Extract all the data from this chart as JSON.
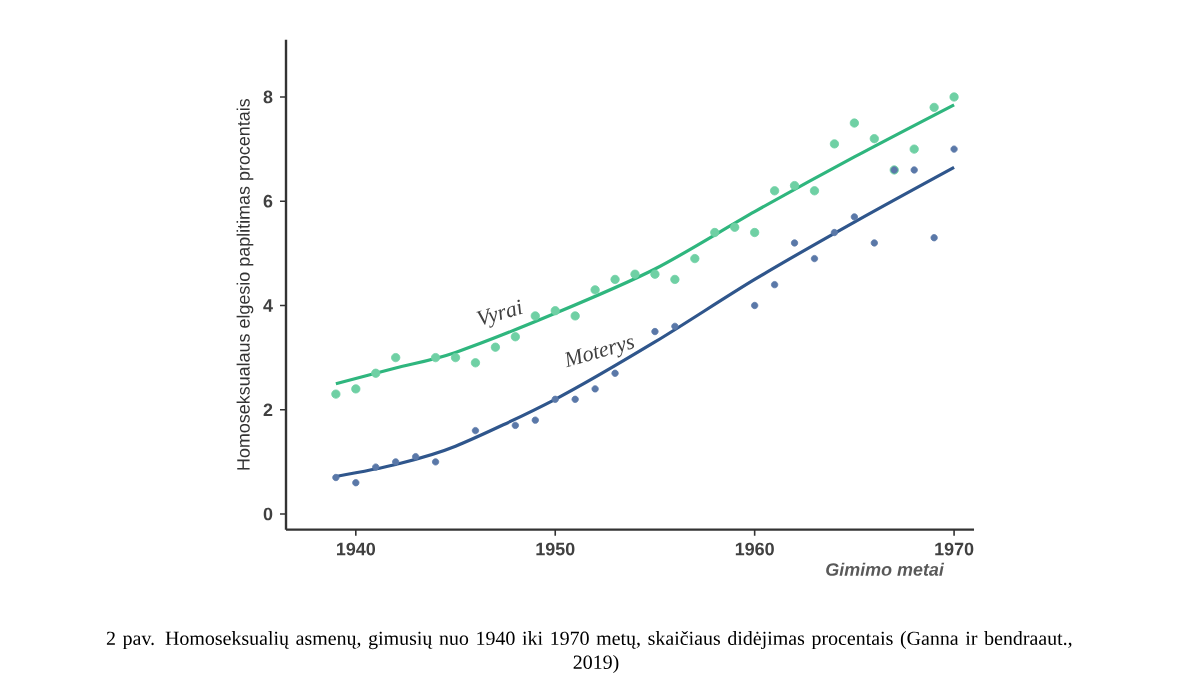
{
  "chart_data": {
    "type": "scatter",
    "xlabel": "Gimimo metai",
    "ylabel": "Homoseksualaus elgesio paplitimas procentais",
    "xlim": [
      1936.5,
      1971
    ],
    "ylim": [
      -0.3,
      9.1
    ],
    "xticks": [
      1940,
      1950,
      1960,
      1970
    ],
    "yticks": [
      0,
      2,
      4,
      6,
      8
    ],
    "grid": false,
    "annotations": [
      "2 pav. Homoseksualių asmenų, gimusių nuo 1940 iki 1970 metų, skaičiaus didėjimas procentais (Ganna ir bendraaut., 2019)"
    ],
    "series": [
      {
        "type": "scatter",
        "marker": "circle",
        "color": "#6fd0a4",
        "x": [
          1939,
          1940,
          1941,
          1942,
          1944,
          1945,
          1946,
          1947,
          1948,
          1949,
          1950,
          1951,
          1952,
          1953,
          1954,
          1955,
          1956,
          1957,
          1958,
          1959,
          1960,
          1961,
          1962,
          1963,
          1964,
          1965,
          1966,
          1967,
          1968,
          1969,
          1970
        ],
        "values": [
          2.3,
          2.4,
          2.7,
          3.0,
          3.0,
          3.0,
          2.9,
          3.2,
          3.4,
          3.8,
          3.9,
          3.8,
          4.3,
          4.5,
          4.6,
          4.6,
          4.5,
          4.9,
          5.4,
          5.5,
          5.4,
          6.2,
          6.3,
          6.2,
          7.1,
          7.5,
          7.2,
          6.6,
          7.0,
          7.8,
          8.0
        ]
      },
      {
        "type": "scatter",
        "marker": "circle",
        "color": "#5a78a8",
        "x": [
          1939,
          1940,
          1941,
          1942,
          1943,
          1944,
          1946,
          1948,
          1949,
          1950,
          1951,
          1952,
          1953,
          1955,
          1956,
          1960,
          1961,
          1962,
          1963,
          1964,
          1965,
          1966,
          1967,
          1968,
          1969,
          1970
        ],
        "values": [
          0.7,
          0.6,
          0.9,
          1.0,
          1.1,
          1.0,
          1.6,
          1.7,
          1.8,
          2.2,
          2.2,
          2.4,
          2.7,
          3.5,
          3.6,
          4.0,
          4.4,
          5.2,
          4.9,
          5.4,
          5.7,
          5.2,
          6.6,
          6.6,
          5.3,
          7.0
        ]
      },
      {
        "type": "line",
        "name": "Vyrai",
        "color": "#2fb67e",
        "marker": "none",
        "x": [
          1939,
          1942,
          1945,
          1950,
          1955,
          1960,
          1965,
          1970
        ],
        "values": [
          2.5,
          2.8,
          3.1,
          3.85,
          4.7,
          5.8,
          6.85,
          7.85
        ]
      },
      {
        "type": "line",
        "name": "Moterys",
        "color": "#2f568c",
        "marker": "none",
        "x": [
          1939,
          1942,
          1945,
          1950,
          1955,
          1960,
          1965,
          1970
        ],
        "values": [
          0.72,
          0.95,
          1.3,
          2.2,
          3.3,
          4.5,
          5.6,
          6.65
        ]
      }
    ]
  }
}
